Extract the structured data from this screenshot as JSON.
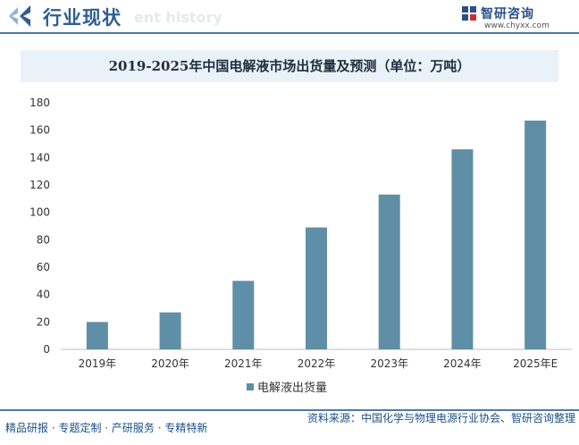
{
  "header": {
    "title": "行业现状",
    "ghost_text": "ent history"
  },
  "logo": {
    "name": "智研咨询",
    "url": "www.chyxx.com"
  },
  "watermark": "智研咨询",
  "chart_data": {
    "type": "bar",
    "title": "2019-2025年中国电解液市场出货量及预测（单位：万吨）",
    "categories": [
      "2019年",
      "2020年",
      "2021年",
      "2022年",
      "2023年",
      "2024年",
      "2025年E"
    ],
    "series": [
      {
        "name": "电解液出货量",
        "values": [
          20,
          27,
          50,
          89,
          113,
          146,
          167
        ],
        "color": "#5f8fa6"
      }
    ],
    "ylim": [
      0,
      180
    ],
    "yticks": [
      0,
      20,
      40,
      60,
      80,
      100,
      120,
      140,
      160,
      180
    ],
    "xlabel": "",
    "ylabel": "",
    "grid": false,
    "legend_position": "bottom-center"
  },
  "footer": {
    "left": "精品研报 · 专题定制 · 产研服务 · 专精特新",
    "right": "资料来源：中国化学与物理电源行业协会、智研咨询整理"
  },
  "colors": {
    "accent": "#2e5e92",
    "title_bar": "#e9f2f9",
    "bar": "#5f8fa6"
  }
}
